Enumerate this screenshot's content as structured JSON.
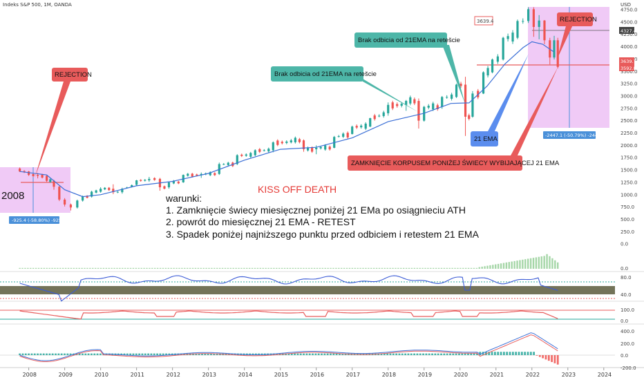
{
  "header": {
    "title": "Indeks S&P 500, 1M, OANDA",
    "currency": "USD"
  },
  "chart_data": {
    "type": "candlestick",
    "title": "",
    "ylim": [
      -250,
      4750
    ],
    "price_ticks": [
      "4750.0",
      "4500.0",
      "4250.0",
      "4000.0",
      "3750.0",
      "3500.0",
      "3250.0",
      "3000.0",
      "2750.0",
      "2500.0",
      "2250.0",
      "2000.0",
      "1750.0",
      "1500.0",
      "1250.0",
      "1000.0",
      "750.0",
      "500.0",
      "250.0",
      "0.0"
    ],
    "x_ticks": [
      "2008",
      "2009",
      "2010",
      "2011",
      "2012",
      "2013",
      "2014",
      "2015",
      "2016",
      "2017",
      "2018",
      "2019",
      "2020",
      "2021",
      "2022",
      "2023",
      "2024"
    ],
    "series": [
      {
        "name": "21 EMA",
        "color": "#3b6fd6",
        "points": [
          [
            2007.75,
            1470
          ],
          [
            2008.5,
            1400
          ],
          [
            2009.0,
            1100
          ],
          [
            2009.5,
            960
          ],
          [
            2010.0,
            1000
          ],
          [
            2011.0,
            1180
          ],
          [
            2012.0,
            1270
          ],
          [
            2013.0,
            1430
          ],
          [
            2014.0,
            1700
          ],
          [
            2015.0,
            1920
          ],
          [
            2016.0,
            1960
          ],
          [
            2017.0,
            2150
          ],
          [
            2018.0,
            2480
          ],
          [
            2019.0,
            2650
          ],
          [
            2019.75,
            2850
          ],
          [
            2020.25,
            2860
          ],
          [
            2020.75,
            3200
          ],
          [
            2021.25,
            3650
          ],
          [
            2021.75,
            3980
          ],
          [
            2022.0,
            4100
          ],
          [
            2022.3,
            4050
          ],
          [
            2022.6,
            3900
          ]
        ]
      }
    ],
    "candles": [
      [
        2007.75,
        1530,
        1550,
        1460,
        1470
      ],
      [
        2008.0,
        1470,
        1480,
        1380,
        1400
      ],
      [
        2008.25,
        1400,
        1440,
        1330,
        1380
      ],
      [
        2008.5,
        1380,
        1400,
        1260,
        1280
      ],
      [
        2008.7,
        1280,
        1300,
        1100,
        1160
      ],
      [
        2008.85,
        1160,
        1180,
        870,
        900
      ],
      [
        2009.0,
        900,
        930,
        760,
        800
      ],
      [
        2009.17,
        800,
        820,
        680,
        740
      ],
      [
        2009.35,
        740,
        900,
        720,
        880
      ],
      [
        2009.5,
        880,
        980,
        860,
        960
      ],
      [
        2009.75,
        960,
        1080,
        940,
        1060
      ],
      [
        2010.0,
        1060,
        1150,
        1040,
        1120
      ],
      [
        2010.35,
        1120,
        1210,
        1010,
        1050
      ],
      [
        2010.6,
        1050,
        1140,
        1020,
        1120
      ],
      [
        2011.0,
        1200,
        1300,
        1180,
        1290
      ],
      [
        2011.35,
        1290,
        1360,
        1260,
        1320
      ],
      [
        2011.65,
        1320,
        1340,
        1080,
        1150
      ],
      [
        2011.9,
        1150,
        1260,
        1120,
        1250
      ],
      [
        2012.3,
        1250,
        1410,
        1240,
        1400
      ],
      [
        2012.8,
        1400,
        1450,
        1340,
        1420
      ],
      [
        2013.3,
        1420,
        1650,
        1400,
        1620
      ],
      [
        2013.8,
        1620,
        1820,
        1600,
        1800
      ],
      [
        2014.3,
        1800,
        1920,
        1780,
        1900
      ],
      [
        2014.8,
        1900,
        2080,
        1860,
        2060
      ],
      [
        2015.3,
        2060,
        2130,
        2040,
        2100
      ],
      [
        2015.65,
        2100,
        2120,
        1870,
        1920
      ],
      [
        2016.0,
        1920,
        2000,
        1820,
        1950
      ],
      [
        2016.5,
        1950,
        2190,
        1940,
        2170
      ],
      [
        2017.0,
        2230,
        2400,
        2220,
        2380
      ],
      [
        2017.5,
        2380,
        2560,
        2370,
        2550
      ],
      [
        2018.0,
        2650,
        2870,
        2600,
        2820
      ],
      [
        2018.5,
        2820,
        2920,
        2700,
        2900
      ],
      [
        2018.85,
        2900,
        2950,
        2340,
        2500
      ],
      [
        2019.0,
        2500,
        2800,
        2480,
        2780
      ],
      [
        2019.5,
        2780,
        3000,
        2740,
        2980
      ],
      [
        2019.9,
        2980,
        3250,
        2960,
        3230
      ],
      [
        2020.15,
        3230,
        3390,
        2190,
        2580
      ],
      [
        2020.35,
        2580,
        3100,
        2560,
        3050
      ],
      [
        2020.65,
        3050,
        3500,
        3040,
        3480
      ],
      [
        2020.9,
        3480,
        3760,
        3460,
        3740
      ],
      [
        2021.2,
        3740,
        4200,
        3720,
        4180
      ],
      [
        2021.6,
        4180,
        4550,
        4150,
        4520
      ],
      [
        2021.9,
        4520,
        4800,
        4480,
        4760
      ],
      [
        2022.05,
        4760,
        4800,
        4200,
        4400
      ],
      [
        2022.2,
        4400,
        4640,
        4150,
        4530
      ],
      [
        2022.35,
        4530,
        4540,
        4050,
        4130
      ],
      [
        2022.5,
        4130,
        4180,
        3640,
        3780
      ],
      [
        2022.62,
        3780,
        4220,
        3740,
        4130
      ],
      [
        2022.72,
        4130,
        4180,
        3560,
        3590
      ]
    ],
    "annotations": [
      {
        "text": "REJECTION",
        "style": "red"
      },
      {
        "text": "REJECTION",
        "style": "red"
      },
      {
        "text": "Brak odbicia od 21EMA na retešcie",
        "style": "teal"
      },
      {
        "text": "Brak odbicia od 21EMA na retešcie",
        "style": "teal"
      },
      {
        "text": "21 EMA",
        "style": "blue"
      },
      {
        "text": "ZAMKNIĘCIE KORPUSEM PONIŻEJ ŚWIECY WYBIJAJĄCEJ 21 EMA",
        "style": "red"
      }
    ],
    "price_labels": [
      "3639.4",
      "4327.4",
      "3639.7",
      "3592.8"
    ],
    "measure_2008": "-925.4 (-58.80%) -9254",
    "measure_2022": "-2447.1 (-50.79%) -24471",
    "year_label": "2008",
    "kiss_title": "KISS OFF DEATH",
    "conditions": {
      "heading": "warunki:",
      "items": [
        "1. Zamknięcie świecy miesięcznej poniżej 21 EMa po osiągnieciu ATH",
        "2. powrót do miesięcznej 21 EMA  - RETEST",
        "3. Spadek poniżej najniższego punktu przed odbiciem i retestem 21 EMA"
      ]
    },
    "indicators": {
      "volume": {
        "ticks": [
          "0.0"
        ]
      },
      "rsi": {
        "ticks": [
          "80.0",
          "40.0"
        ]
      },
      "stoch": {
        "ticks": [
          "100.0",
          "0.0"
        ]
      },
      "macd": {
        "ticks": [
          "400.0",
          "200.0",
          "0.0",
          "-200.0"
        ]
      }
    },
    "colors": {
      "up": "#26a69a",
      "down": "#ef5350",
      "ema": "#3b6fd6",
      "zone": "#e9b3f2",
      "teal": "#4db6a8",
      "red": "#e85b5b",
      "blue": "#5b8dee"
    }
  }
}
